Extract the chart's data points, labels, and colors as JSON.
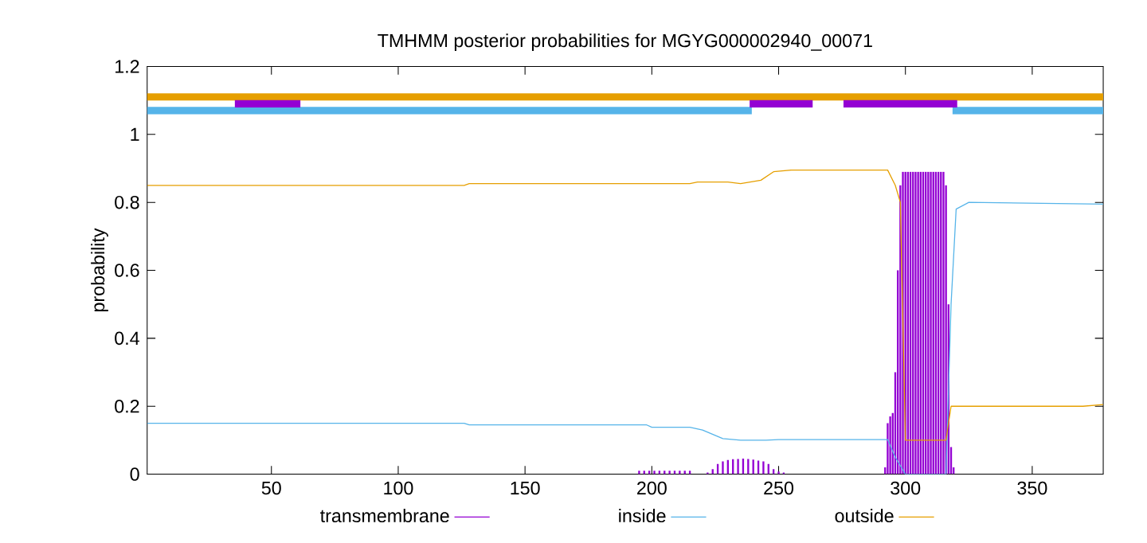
{
  "chart_data": {
    "type": "line",
    "title": "TMHMM posterior probabilities for MGYG000002940_00071",
    "ylabel": "probability",
    "xlim": [
      1,
      378
    ],
    "ylim": [
      0,
      1.2
    ],
    "xticks": [
      50,
      100,
      150,
      200,
      250,
      300,
      350
    ],
    "yticks": [
      0,
      0.2,
      0.4,
      0.6,
      0.8,
      1,
      1.2
    ],
    "legend": "bottom",
    "grid": false,
    "series": [
      {
        "name": "transmembrane",
        "type": "bar",
        "color": "#9400d3",
        "x": [
          195,
          197,
          199,
          201,
          203,
          205,
          207,
          209,
          211,
          213,
          215,
          222,
          224,
          226,
          228,
          230,
          232,
          234,
          236,
          238,
          240,
          242,
          244,
          246,
          248,
          250,
          252,
          292,
          293,
          294,
          295,
          296,
          297,
          298,
          299,
          300,
          301,
          302,
          303,
          304,
          305,
          306,
          307,
          308,
          309,
          310,
          311,
          312,
          313,
          314,
          315,
          316,
          317,
          318,
          319
        ],
        "values": [
          0.01,
          0.01,
          0.01,
          0.01,
          0.01,
          0.01,
          0.01,
          0.01,
          0.01,
          0.01,
          0.01,
          0.005,
          0.015,
          0.03,
          0.038,
          0.042,
          0.044,
          0.045,
          0.046,
          0.045,
          0.043,
          0.04,
          0.038,
          0.03,
          0.015,
          0.008,
          0.005,
          0.02,
          0.15,
          0.17,
          0.18,
          0.3,
          0.6,
          0.85,
          0.89,
          0.89,
          0.89,
          0.89,
          0.89,
          0.89,
          0.89,
          0.89,
          0.89,
          0.89,
          0.89,
          0.89,
          0.89,
          0.89,
          0.89,
          0.89,
          0.89,
          0.85,
          0.5,
          0.08,
          0.02
        ]
      },
      {
        "name": "inside",
        "color": "#56b4e9",
        "x": [
          1,
          126,
          128,
          198,
          200,
          215,
          220,
          228,
          235,
          245,
          250,
          293,
          296,
          300,
          316,
          318,
          320,
          325,
          378
        ],
        "values": [
          0.15,
          0.15,
          0.145,
          0.145,
          0.138,
          0.138,
          0.13,
          0.105,
          0.1,
          0.1,
          0.102,
          0.102,
          0.05,
          0,
          0,
          0.5,
          0.78,
          0.8,
          0.795
        ]
      },
      {
        "name": "outside",
        "color": "#e69f00",
        "x": [
          1,
          126,
          128,
          215,
          218,
          230,
          235,
          243,
          248,
          255,
          293,
          296,
          298,
          300,
          316,
          318,
          370,
          378
        ],
        "values": [
          0.85,
          0.85,
          0.855,
          0.855,
          0.86,
          0.86,
          0.855,
          0.865,
          0.89,
          0.895,
          0.895,
          0.85,
          0.8,
          0.1,
          0.1,
          0.2,
          0.2,
          0.205
        ]
      },
      {
        "color": "#e69f00",
        "x": [
          1,
          378
        ],
        "values": [
          1.11,
          1.11
        ]
      },
      {
        "color": "#56b4e9",
        "x": [
          1,
          238,
          239,
          320,
          378
        ],
        "values": [
          1.07,
          1.07,
          null,
          1.07,
          1.07
        ]
      },
      {
        "color": "#9400d3",
        "x": [
          37,
          60,
          61,
          240,
          262,
          263,
          277,
          299,
          300,
          301,
          319
        ],
        "values": [
          1.09,
          1.09,
          null,
          1.09,
          1.09,
          null,
          1.09,
          1.09,
          null,
          1.09,
          1.09
        ]
      }
    ]
  }
}
